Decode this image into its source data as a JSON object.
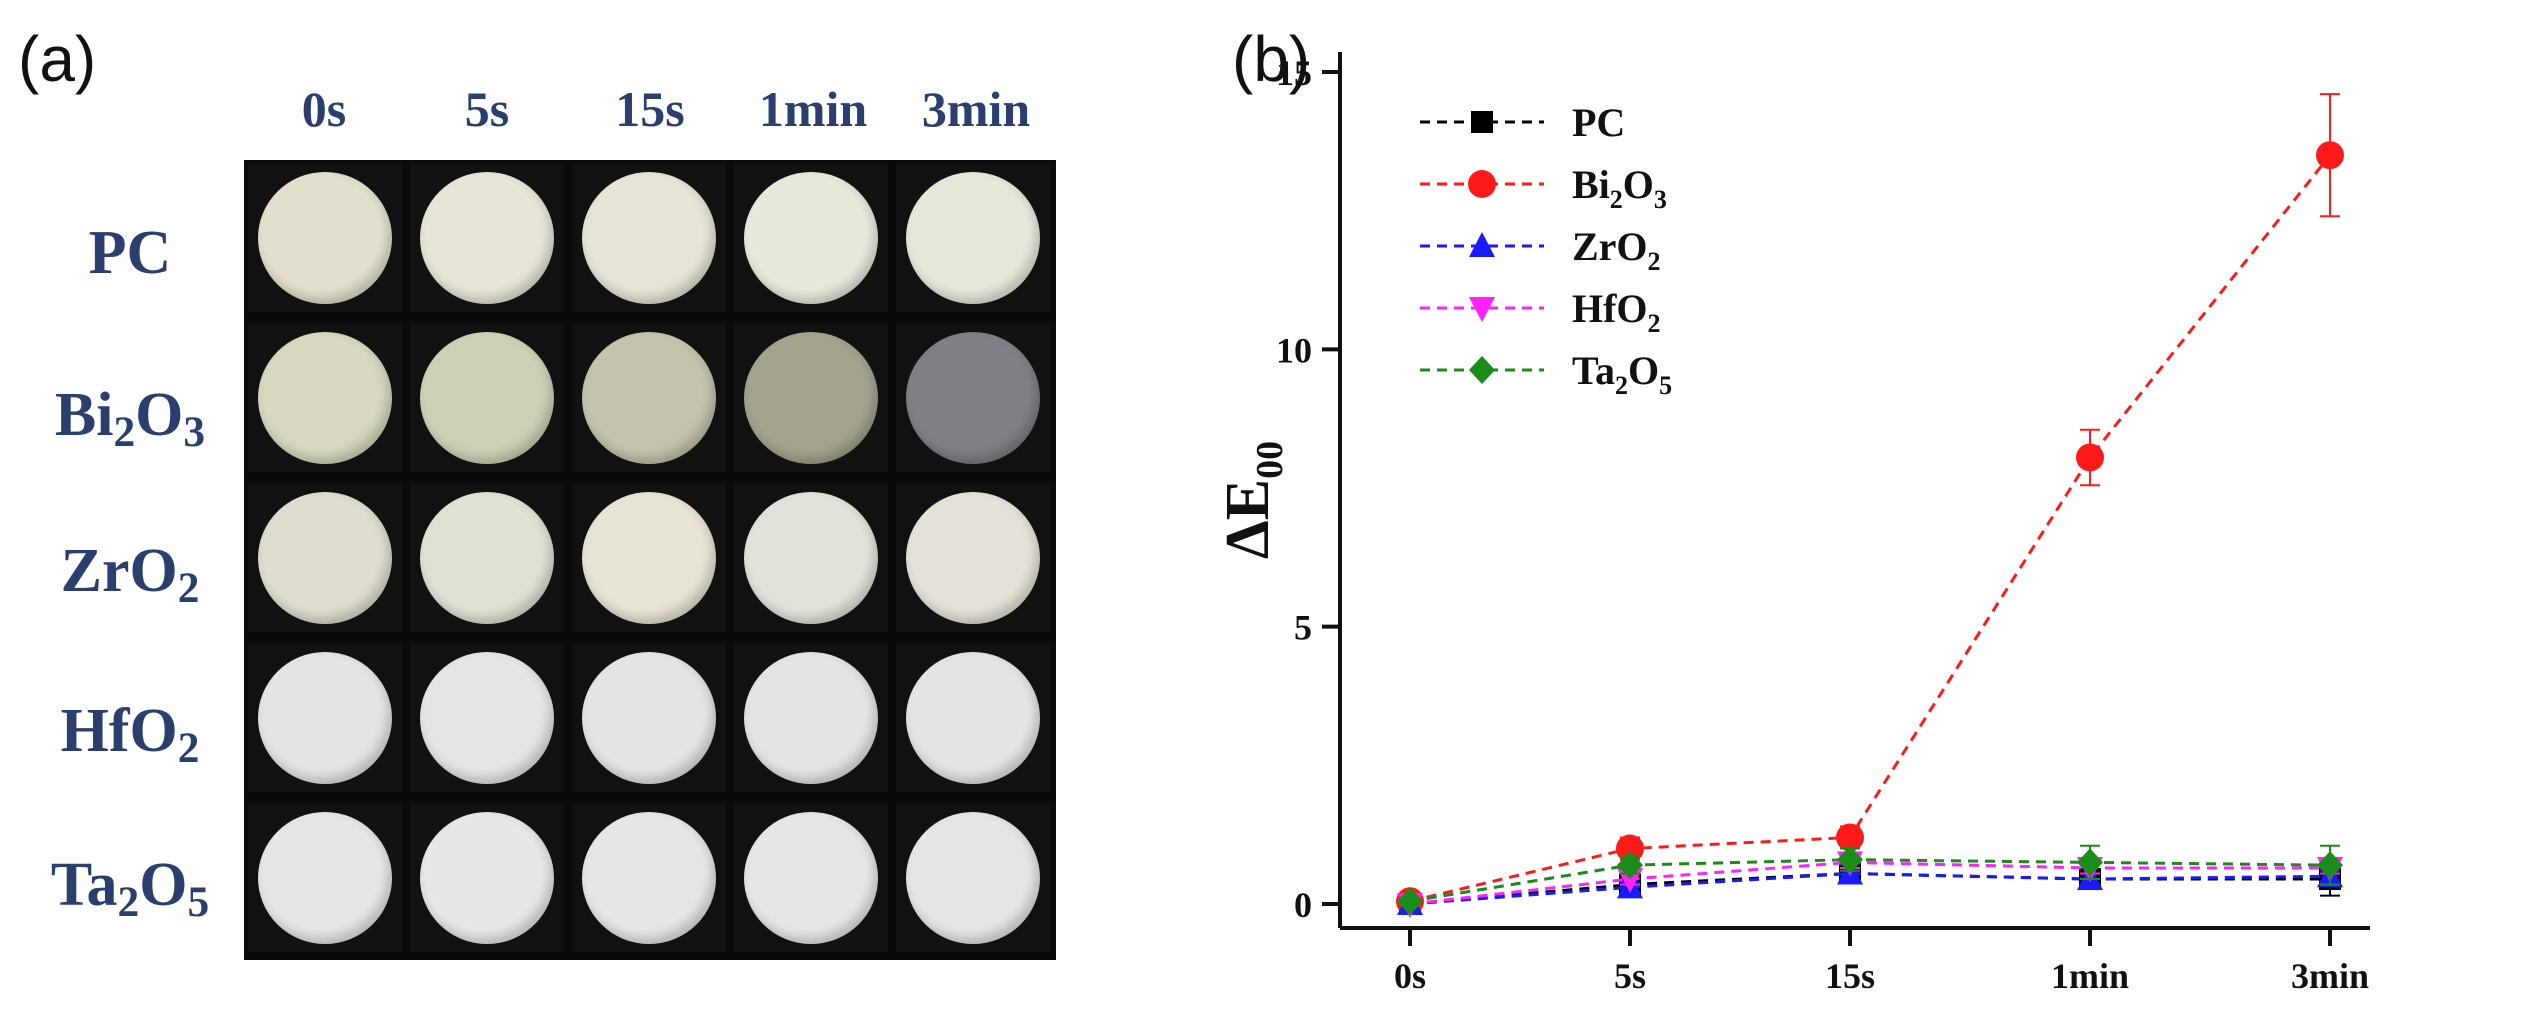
{
  "panel_a": {
    "label": "(a)",
    "columns": [
      "0s",
      "5s",
      "15s",
      "1min",
      "3min"
    ],
    "rows": [
      {
        "label": "PC"
      },
      {
        "label_parts": [
          "Bi",
          "2",
          "O",
          "3"
        ]
      },
      {
        "label_parts": [
          "ZrO",
          "2"
        ]
      },
      {
        "label_parts": [
          "HfO",
          "2"
        ]
      },
      {
        "label_parts": [
          "Ta",
          "2",
          "O",
          "5"
        ]
      }
    ],
    "disc_colors": [
      [
        "#e2e0cc",
        "#e6e5d8",
        "#e5e4d6",
        "#e9e8dd",
        "#e8e7dc"
      ],
      [
        "#d7d8bf",
        "#cfd1b7",
        "#c4c3ad",
        "#a3a38e",
        "#7f7f85"
      ],
      [
        "#deddd0",
        "#e1e0d5",
        "#e7e4d5",
        "#e3e2da",
        "#e4e2d8"
      ],
      [
        "#e3e5e4",
        "#e4e6e4",
        "#e3e5e4",
        "#e4e5e3",
        "#e4e5e3"
      ],
      [
        "#e6e6e4",
        "#e7e7e5",
        "#e6e6e4",
        "#e6e6e4",
        "#e5e5e3"
      ]
    ]
  },
  "panel_b": {
    "label": "(b)"
  },
  "chart_data": {
    "type": "line",
    "categories": [
      "0s",
      "5s",
      "15s",
      "1min",
      "3min"
    ],
    "ylabel_main": "ΔE",
    "ylabel_sub": "00",
    "xlabel": "",
    "ylim": [
      0,
      15
    ],
    "yticks": [
      0,
      5,
      10,
      15
    ],
    "grid": false,
    "legend_position": "top-left",
    "series": [
      {
        "name": "PC",
        "name_main": "PC",
        "name_parts": [
          "PC"
        ],
        "color": "#000000",
        "marker": "square",
        "values": [
          0.0,
          0.35,
          0.55,
          0.45,
          0.45
        ],
        "errors": [
          0.05,
          0.08,
          0.1,
          0.08,
          0.3
        ]
      },
      {
        "name": "Bi2O3",
        "name_parts": [
          "Bi",
          "2",
          "O",
          "3"
        ],
        "color": "#ff1a1a",
        "marker": "circle",
        "values": [
          0.05,
          1.0,
          1.2,
          8.05,
          13.5
        ],
        "errors": [
          0.05,
          0.2,
          0.2,
          0.5,
          1.1
        ]
      },
      {
        "name": "ZrO2",
        "name_parts": [
          "ZrO",
          "2"
        ],
        "color": "#1a1aff",
        "marker": "triangle-up",
        "values": [
          0.0,
          0.3,
          0.55,
          0.45,
          0.5
        ],
        "errors": [
          0.05,
          0.08,
          0.1,
          0.1,
          0.1
        ]
      },
      {
        "name": "HfO2",
        "name_parts": [
          "HfO",
          "2"
        ],
        "color": "#ff22ff",
        "marker": "triangle-down",
        "values": [
          0.0,
          0.45,
          0.75,
          0.65,
          0.65
        ],
        "errors": [
          0.05,
          0.1,
          0.1,
          0.1,
          0.1
        ]
      },
      {
        "name": "Ta2O5",
        "name_parts": [
          "Ta",
          "2",
          "O",
          "5"
        ],
        "color": "#1a8c1a",
        "marker": "diamond",
        "values": [
          0.05,
          0.7,
          0.8,
          0.75,
          0.7
        ],
        "errors": [
          0.05,
          0.15,
          0.2,
          0.3,
          0.35
        ]
      }
    ]
  }
}
